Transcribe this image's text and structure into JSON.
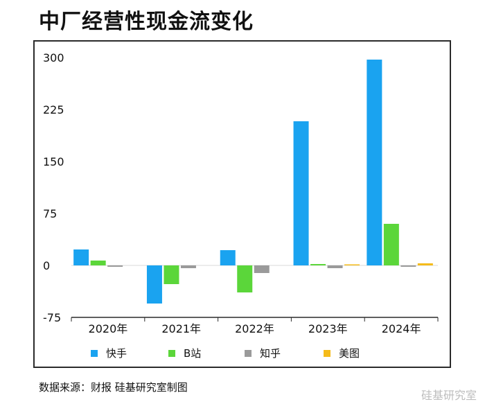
{
  "title": "中厂经营性现金流变化",
  "source": "数据来源：财报 硅基研究室制图",
  "watermark": "硅基研究室",
  "chart_data": {
    "type": "bar",
    "title": "中厂经营性现金流变化",
    "xlabel": "",
    "ylabel": "",
    "ylim": [
      -75,
      300
    ],
    "yticks": [
      300,
      225,
      150,
      75,
      0,
      -75
    ],
    "ytick_labels": [
      "300",
      "225",
      "150",
      "75",
      "0",
      "-75"
    ],
    "categories": [
      "2020年",
      "2021年",
      "2022年",
      "2023年",
      "2024年"
    ],
    "grid": false,
    "legend_position": "bottom",
    "series": [
      {
        "name": "快手",
        "color": "#1aa3f0",
        "values": [
          23,
          -55,
          22,
          208,
          297
        ]
      },
      {
        "name": "B站",
        "color": "#5bd63a",
        "values": [
          7,
          -27,
          -39,
          2,
          60
        ]
      },
      {
        "name": "知乎",
        "color": "#9a9a9a",
        "values": [
          -2,
          -4,
          -11,
          -4,
          -2
        ]
      },
      {
        "name": "美图",
        "color": "#f5bb1a",
        "values": [
          0,
          0,
          0,
          1.5,
          3
        ]
      }
    ]
  }
}
